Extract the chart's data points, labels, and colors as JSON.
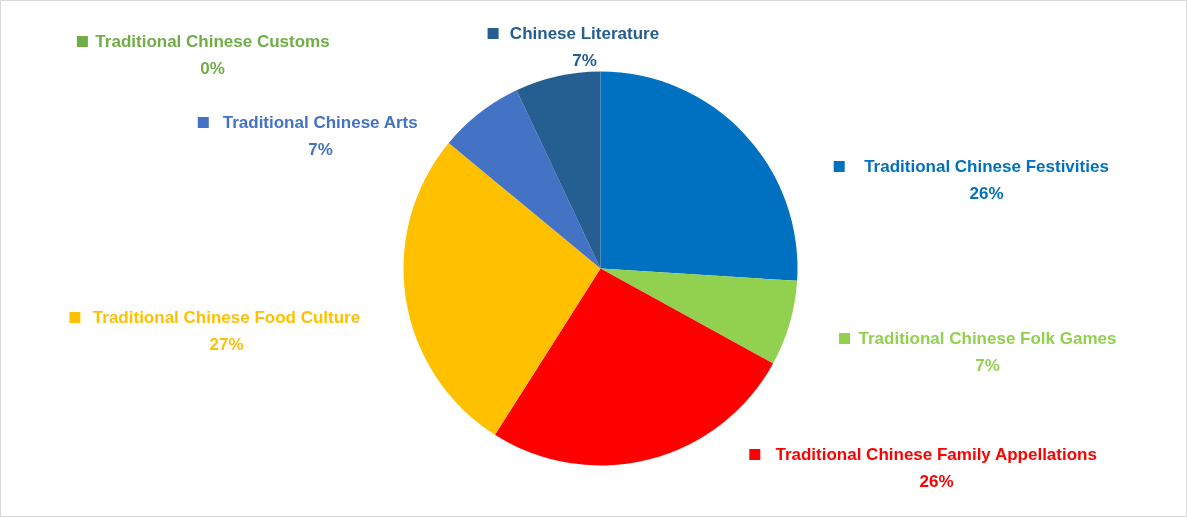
{
  "chart_data": {
    "type": "pie",
    "categories": [
      "Traditional Chinese Festivities",
      "Traditional Chinese Folk Games",
      "Traditional Chinese Family Appellations",
      "Traditional Chinese Food Culture",
      "Traditional Chinese Arts",
      "Chinese Literature",
      "Traditional Chinese Customs"
    ],
    "values": [
      26,
      7,
      26,
      27,
      7,
      7,
      0
    ],
    "value_labels": [
      "26%",
      "7%",
      "26%",
      "27%",
      "7%",
      "7%",
      "0%"
    ],
    "legend": "right",
    "colors": [
      "#0070c0",
      "#92d050",
      "#ff0000",
      "#ffc000",
      "#4472c4",
      "#255e91",
      "#70ad47"
    ]
  }
}
